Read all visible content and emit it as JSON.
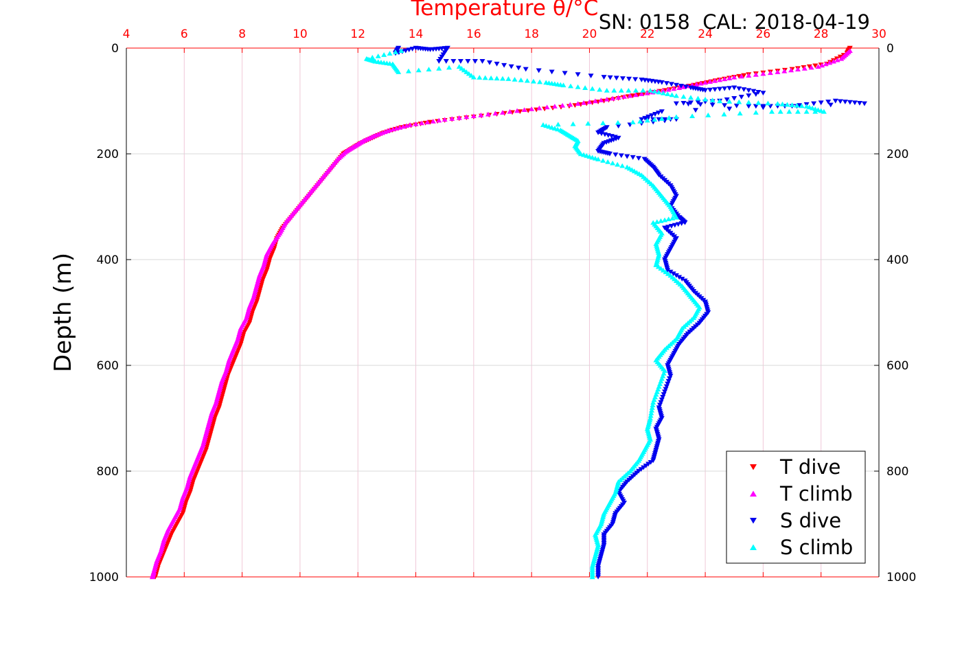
{
  "chart_data": {
    "type": "scatter",
    "title": "Temperature θ/°C",
    "annotation": "SN: 0158  CAL: 2018-04-19",
    "xlabel": "Temperature θ/°C",
    "ylabel": "Depth (m)",
    "xlim": [
      4,
      30
    ],
    "ylim": [
      0,
      1000
    ],
    "y_reversed": true,
    "x_axis_position": "top",
    "y_axis_mirrored": true,
    "grid": true,
    "x_ticks": [
      "4",
      "6",
      "8",
      "10",
      "12",
      "14",
      "16",
      "18",
      "20",
      "22",
      "24",
      "26",
      "28",
      "30"
    ],
    "y_ticks": [
      "0",
      "200",
      "400",
      "600",
      "800",
      "1000"
    ],
    "legend_position": "bottom-right",
    "series": [
      {
        "name": "T dive",
        "marker": "triangle-down",
        "color": "#ff0000",
        "points": [
          [
            29.0,
            0
          ],
          [
            28.9,
            10
          ],
          [
            28.2,
            30
          ],
          [
            27.0,
            40
          ],
          [
            25.5,
            50
          ],
          [
            24.5,
            60
          ],
          [
            23.6,
            70
          ],
          [
            22.6,
            80
          ],
          [
            21.5,
            90
          ],
          [
            20.5,
            100
          ],
          [
            19.3,
            110
          ],
          [
            17.6,
            120
          ],
          [
            16.0,
            130
          ],
          [
            14.5,
            140
          ],
          [
            13.5,
            150
          ],
          [
            12.9,
            160
          ],
          [
            12.5,
            170
          ],
          [
            12.1,
            180
          ],
          [
            11.8,
            190
          ],
          [
            11.5,
            200
          ],
          [
            11.2,
            220
          ],
          [
            10.9,
            240
          ],
          [
            10.6,
            260
          ],
          [
            10.3,
            280
          ],
          [
            10.0,
            300
          ],
          [
            9.7,
            320
          ],
          [
            9.4,
            340
          ],
          [
            9.2,
            360
          ],
          [
            9.1,
            380
          ],
          [
            8.95,
            400
          ],
          [
            8.85,
            420
          ],
          [
            8.7,
            440
          ],
          [
            8.6,
            460
          ],
          [
            8.5,
            480
          ],
          [
            8.35,
            500
          ],
          [
            8.25,
            520
          ],
          [
            8.05,
            540
          ],
          [
            7.95,
            560
          ],
          [
            7.8,
            580
          ],
          [
            7.65,
            600
          ],
          [
            7.5,
            620
          ],
          [
            7.4,
            640
          ],
          [
            7.3,
            660
          ],
          [
            7.2,
            680
          ],
          [
            7.05,
            700
          ],
          [
            6.95,
            720
          ],
          [
            6.85,
            740
          ],
          [
            6.75,
            760
          ],
          [
            6.6,
            780
          ],
          [
            6.45,
            800
          ],
          [
            6.3,
            820
          ],
          [
            6.2,
            840
          ],
          [
            6.05,
            860
          ],
          [
            5.95,
            880
          ],
          [
            5.75,
            900
          ],
          [
            5.55,
            920
          ],
          [
            5.4,
            940
          ],
          [
            5.25,
            960
          ],
          [
            5.1,
            980
          ],
          [
            5.0,
            1000
          ]
        ]
      },
      {
        "name": "T climb",
        "marker": "triangle-up",
        "color": "#ff00ff",
        "points": [
          [
            29.0,
            5
          ],
          [
            28.7,
            20
          ],
          [
            27.9,
            35
          ],
          [
            26.5,
            45
          ],
          [
            25.0,
            55
          ],
          [
            24.0,
            65
          ],
          [
            23.1,
            75
          ],
          [
            22.0,
            85
          ],
          [
            20.8,
            95
          ],
          [
            19.6,
            105
          ],
          [
            18.0,
            115
          ],
          [
            16.5,
            125
          ],
          [
            15.0,
            135
          ],
          [
            13.8,
            145
          ],
          [
            13.1,
            155
          ],
          [
            12.6,
            165
          ],
          [
            12.2,
            175
          ],
          [
            11.9,
            185
          ],
          [
            11.6,
            195
          ],
          [
            11.3,
            210
          ],
          [
            11.0,
            230
          ],
          [
            10.7,
            250
          ],
          [
            10.4,
            270
          ],
          [
            10.1,
            290
          ],
          [
            9.8,
            310
          ],
          [
            9.5,
            330
          ],
          [
            9.3,
            350
          ],
          [
            9.05,
            370
          ],
          [
            8.85,
            390
          ],
          [
            8.75,
            410
          ],
          [
            8.6,
            430
          ],
          [
            8.5,
            450
          ],
          [
            8.4,
            470
          ],
          [
            8.25,
            490
          ],
          [
            8.15,
            510
          ],
          [
            7.95,
            530
          ],
          [
            7.85,
            550
          ],
          [
            7.7,
            570
          ],
          [
            7.55,
            590
          ],
          [
            7.45,
            610
          ],
          [
            7.3,
            630
          ],
          [
            7.2,
            650
          ],
          [
            7.1,
            670
          ],
          [
            6.95,
            690
          ],
          [
            6.85,
            710
          ],
          [
            6.75,
            730
          ],
          [
            6.65,
            750
          ],
          [
            6.5,
            770
          ],
          [
            6.35,
            790
          ],
          [
            6.2,
            810
          ],
          [
            6.1,
            830
          ],
          [
            5.95,
            850
          ],
          [
            5.85,
            870
          ],
          [
            5.65,
            890
          ],
          [
            5.45,
            910
          ],
          [
            5.3,
            930
          ],
          [
            5.2,
            950
          ],
          [
            5.05,
            970
          ],
          [
            4.95,
            990
          ],
          [
            4.9,
            1000
          ]
        ]
      },
      {
        "name": "S dive",
        "marker": "triangle-down",
        "color": "#0000ee",
        "points": [
          [
            13.4,
            0
          ],
          [
            13.3,
            10
          ],
          [
            14.0,
            0
          ],
          [
            14.5,
            3
          ],
          [
            15.1,
            0
          ],
          [
            14.8,
            25
          ],
          [
            16.3,
            25
          ],
          [
            17.8,
            40
          ],
          [
            20.5,
            55
          ],
          [
            21.8,
            60
          ],
          [
            22.5,
            65
          ],
          [
            23.5,
            75
          ],
          [
            24.0,
            80
          ],
          [
            25.0,
            75
          ],
          [
            26.0,
            85
          ],
          [
            24.5,
            100
          ],
          [
            23.0,
            105
          ],
          [
            25.5,
            110
          ],
          [
            27.0,
            110
          ],
          [
            28.5,
            100
          ],
          [
            29.5,
            105
          ],
          [
            22.5,
            120
          ],
          [
            21.8,
            135
          ],
          [
            23.0,
            135
          ],
          [
            20.6,
            150
          ],
          [
            20.3,
            160
          ],
          [
            21.0,
            170
          ],
          [
            20.5,
            180
          ],
          [
            20.3,
            195
          ],
          [
            20.7,
            200
          ],
          [
            21.9,
            210
          ],
          [
            22.2,
            225
          ],
          [
            22.4,
            240
          ],
          [
            22.8,
            260
          ],
          [
            23.0,
            280
          ],
          [
            22.8,
            300
          ],
          [
            23.1,
            320
          ],
          [
            23.3,
            330
          ],
          [
            22.6,
            340
          ],
          [
            23.0,
            360
          ],
          [
            22.8,
            380
          ],
          [
            22.6,
            400
          ],
          [
            22.7,
            420
          ],
          [
            23.3,
            440
          ],
          [
            23.6,
            460
          ],
          [
            24.0,
            480
          ],
          [
            24.1,
            500
          ],
          [
            23.8,
            520
          ],
          [
            23.4,
            540
          ],
          [
            23.1,
            560
          ],
          [
            22.9,
            580
          ],
          [
            22.7,
            600
          ],
          [
            22.8,
            620
          ],
          [
            22.6,
            650
          ],
          [
            22.4,
            680
          ],
          [
            22.5,
            700
          ],
          [
            22.3,
            720
          ],
          [
            22.4,
            740
          ],
          [
            22.3,
            760
          ],
          [
            22.2,
            780
          ],
          [
            21.7,
            800
          ],
          [
            21.3,
            820
          ],
          [
            21.0,
            840
          ],
          [
            21.2,
            860
          ],
          [
            20.9,
            880
          ],
          [
            20.8,
            900
          ],
          [
            20.5,
            920
          ],
          [
            20.5,
            940
          ],
          [
            20.4,
            960
          ],
          [
            20.3,
            980
          ],
          [
            20.3,
            1000
          ]
        ]
      },
      {
        "name": "S climb",
        "marker": "triangle-up",
        "color": "#00ffff",
        "points": [
          [
            13.5,
            5
          ],
          [
            12.3,
            20
          ],
          [
            12.6,
            25
          ],
          [
            13.2,
            30
          ],
          [
            13.4,
            45
          ],
          [
            15.5,
            35
          ],
          [
            16.0,
            55
          ],
          [
            17.2,
            58
          ],
          [
            18.5,
            65
          ],
          [
            19.1,
            70
          ],
          [
            20.6,
            80
          ],
          [
            22.1,
            80
          ],
          [
            23.0,
            90
          ],
          [
            24.5,
            100
          ],
          [
            26.5,
            105
          ],
          [
            27.5,
            110
          ],
          [
            28.1,
            120
          ],
          [
            26.3,
            120
          ],
          [
            23.0,
            130
          ],
          [
            21.5,
            140
          ],
          [
            18.4,
            145
          ],
          [
            19.0,
            155
          ],
          [
            19.3,
            165
          ],
          [
            19.6,
            175
          ],
          [
            19.5,
            185
          ],
          [
            19.7,
            200
          ],
          [
            20.3,
            210
          ],
          [
            21.3,
            225
          ],
          [
            21.8,
            240
          ],
          [
            22.2,
            260
          ],
          [
            22.5,
            280
          ],
          [
            22.8,
            300
          ],
          [
            23.0,
            320
          ],
          [
            22.2,
            330
          ],
          [
            22.5,
            350
          ],
          [
            22.3,
            370
          ],
          [
            22.4,
            390
          ],
          [
            22.3,
            410
          ],
          [
            22.8,
            430
          ],
          [
            23.2,
            450
          ],
          [
            23.5,
            470
          ],
          [
            23.8,
            490
          ],
          [
            23.6,
            510
          ],
          [
            23.2,
            530
          ],
          [
            23.0,
            550
          ],
          [
            22.6,
            570
          ],
          [
            22.3,
            590
          ],
          [
            22.6,
            610
          ],
          [
            22.4,
            640
          ],
          [
            22.2,
            670
          ],
          [
            22.1,
            700
          ],
          [
            22.0,
            720
          ],
          [
            22.1,
            740
          ],
          [
            21.9,
            760
          ],
          [
            21.7,
            780
          ],
          [
            21.4,
            800
          ],
          [
            21.0,
            820
          ],
          [
            20.9,
            840
          ],
          [
            20.7,
            860
          ],
          [
            20.5,
            880
          ],
          [
            20.4,
            900
          ],
          [
            20.2,
            920
          ],
          [
            20.3,
            940
          ],
          [
            20.2,
            960
          ],
          [
            20.1,
            980
          ],
          [
            20.1,
            1000
          ]
        ]
      }
    ]
  },
  "colors": {
    "axis_top": "#ff0000",
    "axis": "#000000",
    "grid": "#d8d8d8"
  }
}
